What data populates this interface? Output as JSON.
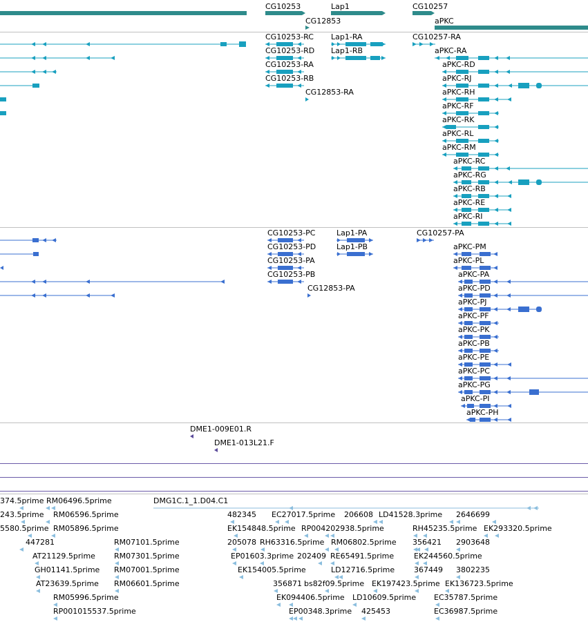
{
  "colors": {
    "gene_teal": "#2e8b8b",
    "transcript_cyan": "#18a0bf",
    "protein_blue": "#3a6fd0",
    "clone_purple": "#5a4a9a",
    "est_lightblue": "#8bbede",
    "divider": "#c0c0c0",
    "purple_line": "#6a5aa8",
    "label": "#000000"
  },
  "genes": [
    {
      "name": "CG10253"
    },
    {
      "name": "Lap1"
    },
    {
      "name": "CG10257"
    },
    {
      "name": "CG12853"
    },
    {
      "name": "aPKC"
    }
  ],
  "transcripts": [
    {
      "name": "CG10253-RC"
    },
    {
      "name": "Lap1-RA"
    },
    {
      "name": "CG10257-RA"
    },
    {
      "name": "CG10253-RD"
    },
    {
      "name": "Lap1-RB"
    },
    {
      "name": "aPKC-RA"
    },
    {
      "name": "CG10253-RA"
    },
    {
      "name": "aPKC-RD"
    },
    {
      "name": "CG10253-RB"
    },
    {
      "name": "aPKC-RJ"
    },
    {
      "name": "CG12853-RA"
    },
    {
      "name": "aPKC-RH"
    },
    {
      "name": "aPKC-RF"
    },
    {
      "name": "aPKC-RK"
    },
    {
      "name": "aPKC-RL"
    },
    {
      "name": "aPKC-RM"
    },
    {
      "name": "aPKC-RC"
    },
    {
      "name": "aPKC-RG"
    },
    {
      "name": "aPKC-RB"
    },
    {
      "name": "aPKC-RE"
    },
    {
      "name": "aPKC-RI"
    }
  ],
  "proteins": [
    {
      "name": "CG10253-PC"
    },
    {
      "name": "Lap1-PA"
    },
    {
      "name": "CG10257-PA"
    },
    {
      "name": "CG10253-PD"
    },
    {
      "name": "Lap1-PB"
    },
    {
      "name": "aPKC-PM"
    },
    {
      "name": "CG10253-PA"
    },
    {
      "name": "aPKC-PL"
    },
    {
      "name": "CG10253-PB"
    },
    {
      "name": "aPKC-PA"
    },
    {
      "name": "CG12853-PA"
    },
    {
      "name": "aPKC-PD"
    },
    {
      "name": "aPKC-PJ"
    },
    {
      "name": "aPKC-PF"
    },
    {
      "name": "aPKC-PK"
    },
    {
      "name": "aPKC-PB"
    },
    {
      "name": "aPKC-PE"
    },
    {
      "name": "aPKC-PC"
    },
    {
      "name": "aPKC-PG"
    },
    {
      "name": "aPKC-PI"
    },
    {
      "name": "aPKC-PH"
    }
  ],
  "clones": [
    {
      "name": "DME1-009E01.R"
    },
    {
      "name": "DME1-013L21.F"
    }
  ],
  "est_labels": [
    "374.5prime",
    "RM06496.5prime",
    "DMG1C.1_1.D04.C1",
    "243.5prime",
    "RM06596.5prime",
    "482345",
    "EC27017.5prime",
    "206608",
    "LD41528.3prime",
    "2646699",
    "5580.5prime",
    "RM05896.5prime",
    "EK154848.5prime",
    "RP004202938.5prime",
    "RH45235.5prime",
    "EK293320.5prime",
    "447281",
    "RM07101.5prime",
    "205078",
    "RH63316.5prime",
    "RM06802.5prime",
    "356421",
    "2903648",
    "AT21129.5prime",
    "RM07301.5prime",
    "EP01603.3prime",
    "202409",
    "RE65491.5prime",
    "EK244560.5prime",
    "GH01141.5prime",
    "RM07001.5prime",
    "EK154005.5prime",
    "LD12716.5prime",
    "367449",
    "3802235",
    "AT23639.5prime",
    "RM06601.5prime",
    "356871",
    "bs82f09.5prime",
    "EK197423.5prime",
    "EK136723.5prime",
    "RM05996.5prime",
    "EK094406.5prime",
    "LD10609.5prime",
    "EC35787.5prime",
    "RP001015537.5prime",
    "EP00348.3prime",
    "425453",
    "EC36987.5prime"
  ]
}
